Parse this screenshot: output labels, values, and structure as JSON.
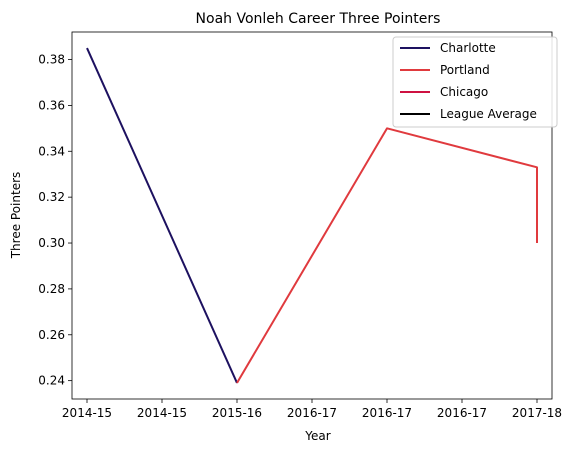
{
  "chart_data": {
    "type": "line",
    "title": "Noah Vonleh Career Three Pointers",
    "xlabel": "Year",
    "ylabel": "Three Pointers",
    "x_tick_labels": [
      "2014-15",
      "2014-15",
      "2015-16",
      "2016-17",
      "2016-17",
      "2016-17",
      "2017-18"
    ],
    "x_range": [
      -0.1,
      3.1
    ],
    "ylim": [
      0.232,
      0.392
    ],
    "y_ticks": [
      0.24,
      0.26,
      0.28,
      0.3,
      0.32,
      0.34,
      0.36,
      0.38
    ],
    "y_tick_labels": [
      "0.24",
      "0.26",
      "0.28",
      "0.30",
      "0.32",
      "0.34",
      "0.36",
      "0.38"
    ],
    "legend_position": "top-right",
    "grid": false,
    "series": [
      {
        "name": "Charlotte",
        "color": "#1d1160",
        "points": [
          [
            0,
            0.385
          ],
          [
            1,
            0.239
          ]
        ]
      },
      {
        "name": "Portland",
        "color": "#e03a3e",
        "points": [
          [
            1,
            0.239
          ],
          [
            2,
            0.35
          ],
          [
            3,
            0.333
          ],
          [
            3,
            0.3
          ]
        ]
      },
      {
        "name": "Chicago",
        "color": "#ce1141",
        "points": []
      },
      {
        "name": "League Average",
        "color": "#000000",
        "points": []
      }
    ]
  }
}
